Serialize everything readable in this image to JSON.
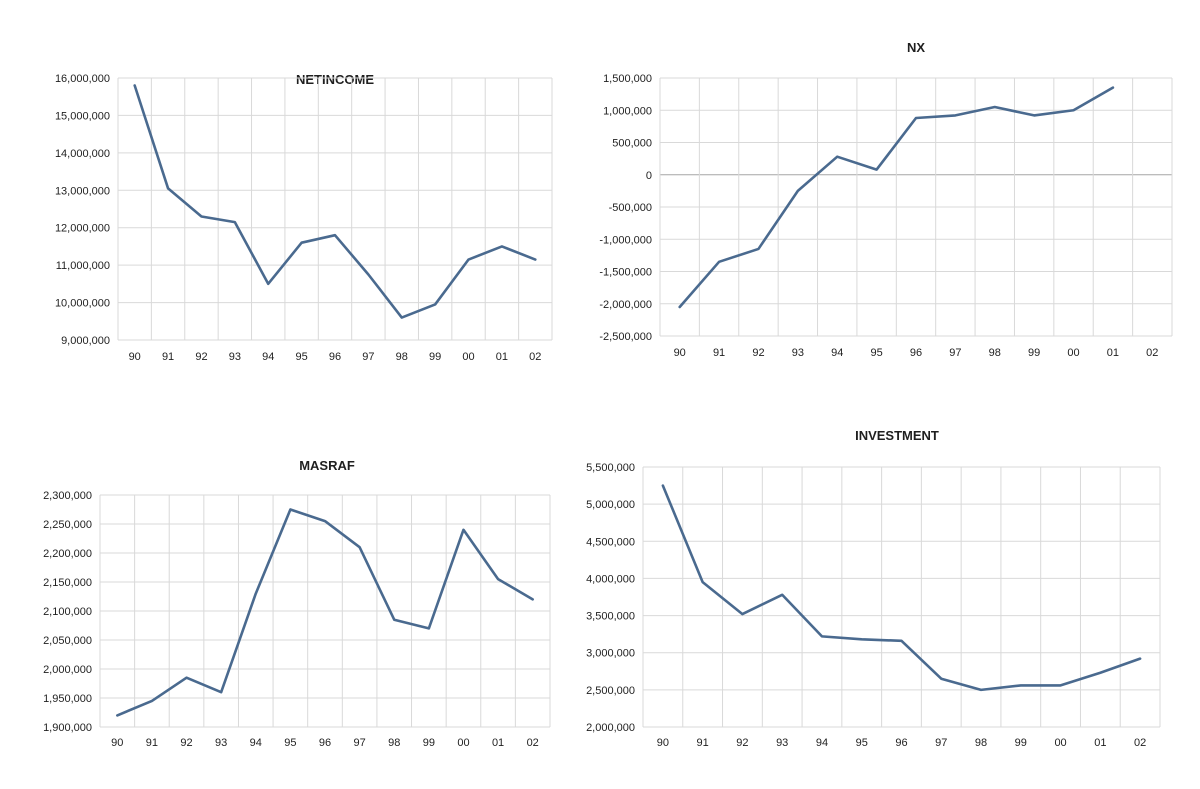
{
  "chart_data": [
    {
      "type": "line",
      "title": "NETINCOME",
      "categories": [
        "90",
        "91",
        "92",
        "93",
        "94",
        "95",
        "96",
        "97",
        "98",
        "99",
        "00",
        "01",
        "02"
      ],
      "ylim": [
        9000000,
        16000000
      ],
      "yticks": [
        9000000,
        10000000,
        11000000,
        12000000,
        13000000,
        14000000,
        15000000,
        16000000
      ],
      "ytick_labels": [
        "9,000,000",
        "10,000,000",
        "11,000,000",
        "12,000,000",
        "13,000,000",
        "14,000,000",
        "15,000,000",
        "16,000,000"
      ],
      "values": [
        15800000,
        13050000,
        12300000,
        12150000,
        10500000,
        11600000,
        11800000,
        10750000,
        9600000,
        9950000,
        11150000,
        11500000,
        11150000
      ],
      "grid": true
    },
    {
      "type": "line",
      "title": "NX",
      "categories": [
        "90",
        "91",
        "92",
        "93",
        "94",
        "95",
        "96",
        "97",
        "98",
        "99",
        "00",
        "01",
        "02"
      ],
      "ylim": [
        -2500000,
        1500000
      ],
      "yticks": [
        -2500000,
        -2000000,
        -1500000,
        -1000000,
        -500000,
        0,
        500000,
        1000000,
        1500000
      ],
      "ytick_labels": [
        "-2,500,000",
        "-2,000,000",
        "-1,500,000",
        "-1,000,000",
        "-500,000",
        "0",
        "500,000",
        "1,000,000",
        "1,500,000"
      ],
      "values": [
        -2050000,
        -1350000,
        -1150000,
        -250000,
        280000,
        80000,
        880000,
        920000,
        1050000,
        920000,
        1000000,
        1350000,
        null
      ],
      "grid": true
    },
    {
      "type": "line",
      "title": "MASRAF",
      "categories": [
        "90",
        "91",
        "92",
        "93",
        "94",
        "95",
        "96",
        "97",
        "98",
        "99",
        "00",
        "01",
        "02"
      ],
      "ylim": [
        1900000,
        2300000
      ],
      "yticks": [
        1900000,
        1950000,
        2000000,
        2050000,
        2100000,
        2150000,
        2200000,
        2250000,
        2300000
      ],
      "ytick_labels": [
        "1,900,000",
        "1,950,000",
        "2,000,000",
        "2,050,000",
        "2,100,000",
        "2,150,000",
        "2,200,000",
        "2,250,000",
        "2,300,000"
      ],
      "values": [
        1920000,
        1945000,
        1985000,
        1960000,
        2130000,
        2275000,
        2255000,
        2210000,
        2085000,
        2070000,
        2240000,
        2155000,
        2120000
      ],
      "grid": true
    },
    {
      "type": "line",
      "title": "INVESTMENT",
      "categories": [
        "90",
        "91",
        "92",
        "93",
        "94",
        "95",
        "96",
        "97",
        "98",
        "99",
        "00",
        "01",
        "02"
      ],
      "ylim": [
        2000000,
        5500000
      ],
      "yticks": [
        2000000,
        2500000,
        3000000,
        3500000,
        4000000,
        4500000,
        5000000,
        5500000
      ],
      "ytick_labels": [
        "2,000,000",
        "2,500,000",
        "3,000,000",
        "3,500,000",
        "4,000,000",
        "4,500,000",
        "5,000,000",
        "5,500,000"
      ],
      "values": [
        5250000,
        3950000,
        3520000,
        3780000,
        3220000,
        3180000,
        3160000,
        2650000,
        2500000,
        2560000,
        2560000,
        2730000,
        2920000
      ],
      "grid": true
    }
  ],
  "colors": {
    "series": "#4a6a8f",
    "grid": "#d9d9d9",
    "zero_line": "#a6a6a6"
  }
}
